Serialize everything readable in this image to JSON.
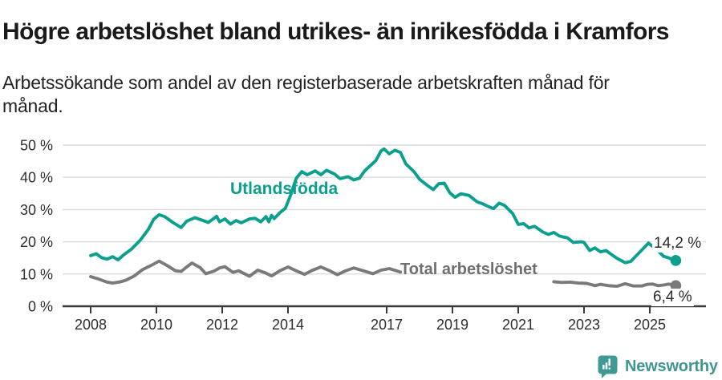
{
  "title": "Högre arbetslöshet bland utrikes- än inrikesfödda i Kramfors",
  "subtitle": "Arbetssökande som andel av den registerbaserade arbetskraften månad för månad.",
  "branding": {
    "name": "Newsworthy",
    "color": "#3f968e",
    "icon": "newsworthy-speech-bubble-bar-chart"
  },
  "chart_data": {
    "type": "line",
    "title": "Högre arbetslöshet bland utrikes- än inrikesfödda i Kramfors",
    "subtitle": "Arbetssökande som andel av den registerbaserade arbetskraften månad för månad.",
    "grid": true,
    "legend_position": "inline-labels",
    "x_axis": {
      "range": [
        2008,
        2025.9
      ],
      "ticks": [
        2008,
        2010,
        2012,
        2014,
        2017,
        2019,
        2021,
        2023,
        2025
      ],
      "tick_labels": [
        "2008",
        "2010",
        "2012",
        "2014",
        "2017",
        "2019",
        "2021",
        "2023",
        "2025"
      ]
    },
    "y_axis": {
      "range": [
        0,
        50
      ],
      "ticks": [
        0,
        10,
        20,
        30,
        40,
        50
      ],
      "tick_labels": [
        "0 %",
        "10 %",
        "20 %",
        "30 %",
        "40 %",
        "50 %"
      ],
      "unit": "percent"
    },
    "series": [
      {
        "name": "Utlandsfödda",
        "color": "#0b9f8d",
        "end_label": "14,2 %",
        "end_value": 14.2,
        "segments": [
          [
            [
              2008.0,
              15.7
            ],
            [
              2008.17,
              16.3
            ],
            [
              2008.33,
              15.1
            ],
            [
              2008.5,
              14.6
            ],
            [
              2008.67,
              15.4
            ],
            [
              2008.83,
              14.4
            ],
            [
              2009.0,
              15.9
            ],
            [
              2009.25,
              17.8
            ],
            [
              2009.5,
              20.4
            ],
            [
              2009.75,
              23.8
            ],
            [
              2009.92,
              27.0
            ],
            [
              2010.08,
              28.4
            ],
            [
              2010.25,
              27.8
            ],
            [
              2010.5,
              26.0
            ],
            [
              2010.75,
              24.4
            ],
            [
              2010.92,
              26.4
            ],
            [
              2011.17,
              27.5
            ],
            [
              2011.42,
              26.6
            ],
            [
              2011.58,
              26.0
            ],
            [
              2011.83,
              27.9
            ],
            [
              2011.92,
              26.2
            ],
            [
              2012.08,
              27.1
            ],
            [
              2012.25,
              25.5
            ],
            [
              2012.42,
              26.6
            ],
            [
              2012.58,
              25.9
            ],
            [
              2012.83,
              27.1
            ],
            [
              2013.0,
              27.3
            ],
            [
              2013.17,
              26.2
            ],
            [
              2013.33,
              27.8
            ],
            [
              2013.42,
              26.2
            ],
            [
              2013.5,
              28.2
            ],
            [
              2013.58,
              27.2
            ],
            [
              2013.75,
              29.0
            ],
            [
              2013.92,
              30.4
            ],
            [
              2014.08,
              34.5
            ],
            [
              2014.25,
              39.7
            ],
            [
              2014.42,
              41.8
            ],
            [
              2014.58,
              40.8
            ],
            [
              2014.83,
              42.0
            ],
            [
              2015.0,
              40.8
            ],
            [
              2015.17,
              42.2
            ],
            [
              2015.42,
              41.0
            ],
            [
              2015.58,
              39.6
            ],
            [
              2015.83,
              40.2
            ],
            [
              2016.0,
              39.2
            ],
            [
              2016.17,
              39.7
            ],
            [
              2016.33,
              42.0
            ],
            [
              2016.5,
              43.6
            ],
            [
              2016.67,
              45.2
            ],
            [
              2016.83,
              48.2
            ],
            [
              2016.92,
              48.8
            ],
            [
              2017.08,
              47.3
            ],
            [
              2017.25,
              48.4
            ],
            [
              2017.42,
              47.7
            ],
            [
              2017.58,
              44.2
            ],
            [
              2017.83,
              41.8
            ],
            [
              2018.0,
              39.4
            ],
            [
              2018.25,
              37.4
            ],
            [
              2018.42,
              36.2
            ],
            [
              2018.58,
              38.0
            ],
            [
              2018.75,
              38.2
            ],
            [
              2018.92,
              35.2
            ],
            [
              2019.08,
              33.8
            ],
            [
              2019.25,
              34.9
            ],
            [
              2019.5,
              34.4
            ],
            [
              2019.75,
              32.4
            ],
            [
              2019.92,
              31.8
            ],
            [
              2020.08,
              31.0
            ],
            [
              2020.25,
              30.3
            ],
            [
              2020.42,
              32.0
            ],
            [
              2020.58,
              31.3
            ],
            [
              2020.83,
              28.8
            ],
            [
              2021.0,
              25.4
            ],
            [
              2021.17,
              25.6
            ],
            [
              2021.33,
              24.3
            ],
            [
              2021.5,
              24.8
            ],
            [
              2021.75,
              23.0
            ],
            [
              2021.92,
              22.3
            ],
            [
              2022.08,
              22.9
            ],
            [
              2022.25,
              21.8
            ],
            [
              2022.5,
              21.2
            ],
            [
              2022.67,
              19.8
            ],
            [
              2022.92,
              20.0
            ],
            [
              2023.0,
              19.8
            ],
            [
              2023.17,
              17.3
            ],
            [
              2023.33,
              18.1
            ],
            [
              2023.5,
              16.9
            ],
            [
              2023.67,
              17.3
            ],
            [
              2023.83,
              16.1
            ],
            [
              2024.0,
              14.9
            ],
            [
              2024.25,
              13.5
            ],
            [
              2024.42,
              13.9
            ],
            [
              2024.58,
              15.6
            ],
            [
              2024.83,
              18.2
            ],
            [
              2024.96,
              19.6
            ],
            [
              2025.08,
              18.6
            ],
            [
              2025.25,
              17.2
            ],
            [
              2025.42,
              15.5
            ],
            [
              2025.58,
              15.0
            ],
            [
              2025.67,
              14.6
            ],
            [
              2025.79,
              14.2
            ]
          ]
        ]
      },
      {
        "name": "Total arbetslöshet",
        "color": "#7a7a7a",
        "end_label": "6,4 %",
        "end_value": 6.4,
        "segments": [
          [
            [
              2008.0,
              9.2
            ],
            [
              2008.25,
              8.4
            ],
            [
              2008.5,
              7.5
            ],
            [
              2008.67,
              7.2
            ],
            [
              2008.92,
              7.6
            ],
            [
              2009.08,
              8.1
            ],
            [
              2009.33,
              9.4
            ],
            [
              2009.58,
              11.4
            ],
            [
              2009.83,
              12.6
            ],
            [
              2010.08,
              14.0
            ],
            [
              2010.33,
              12.6
            ],
            [
              2010.58,
              11.0
            ],
            [
              2010.75,
              10.8
            ],
            [
              2010.92,
              12.2
            ],
            [
              2011.08,
              13.4
            ],
            [
              2011.33,
              12.0
            ],
            [
              2011.5,
              10.1
            ],
            [
              2011.75,
              10.9
            ],
            [
              2011.92,
              11.9
            ],
            [
              2012.08,
              12.3
            ],
            [
              2012.33,
              10.5
            ],
            [
              2012.5,
              11.0
            ],
            [
              2012.83,
              9.3
            ],
            [
              2013.08,
              11.2
            ],
            [
              2013.33,
              10.3
            ],
            [
              2013.5,
              9.4
            ],
            [
              2013.75,
              11.0
            ],
            [
              2014.0,
              12.2
            ],
            [
              2014.25,
              11.0
            ],
            [
              2014.5,
              9.9
            ],
            [
              2014.75,
              11.2
            ],
            [
              2015.0,
              12.2
            ],
            [
              2015.25,
              11.1
            ],
            [
              2015.5,
              9.8
            ],
            [
              2015.75,
              11.0
            ],
            [
              2016.0,
              11.9
            ],
            [
              2016.33,
              10.9
            ],
            [
              2016.58,
              10.1
            ],
            [
              2016.83,
              11.2
            ],
            [
              2017.08,
              11.7
            ],
            [
              2017.42,
              10.6
            ]
          ],
          [
            [
              2022.08,
              7.6
            ],
            [
              2022.33,
              7.4
            ],
            [
              2022.58,
              7.5
            ],
            [
              2022.83,
              7.2
            ],
            [
              2023.08,
              7.1
            ],
            [
              2023.33,
              6.4
            ],
            [
              2023.5,
              6.8
            ],
            [
              2023.75,
              6.4
            ],
            [
              2024.0,
              6.2
            ],
            [
              2024.25,
              7.0
            ],
            [
              2024.5,
              6.3
            ],
            [
              2024.75,
              6.3
            ],
            [
              2024.92,
              6.8
            ],
            [
              2025.08,
              6.9
            ],
            [
              2025.25,
              6.4
            ],
            [
              2025.42,
              6.6
            ],
            [
              2025.58,
              6.9
            ],
            [
              2025.79,
              6.4
            ]
          ]
        ]
      }
    ],
    "colors": {
      "grid": "#dcdcdc",
      "axis": "#3a3a3a",
      "tick_text": "#2e2e2e",
      "teal": "#0b9f8d",
      "gray": "#7a7a7a"
    }
  }
}
